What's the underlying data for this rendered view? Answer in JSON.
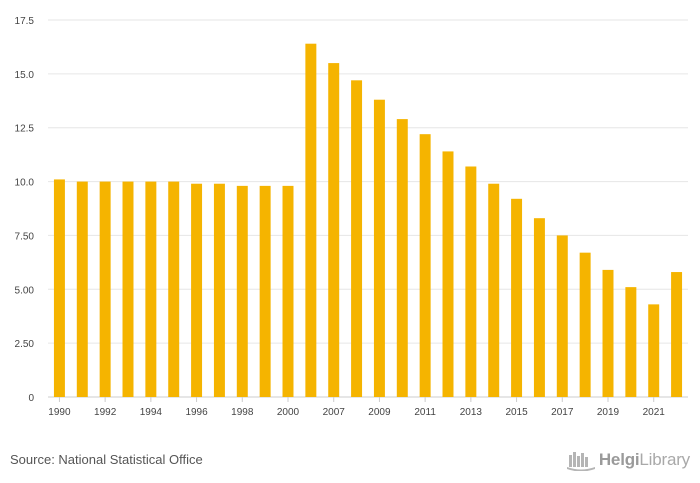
{
  "chart_data": {
    "type": "bar",
    "categories": [
      "1990",
      "1991",
      "1992",
      "1993",
      "1994",
      "1995",
      "1996",
      "1997",
      "1998",
      "1999",
      "2000",
      "2006",
      "2007",
      "2008",
      "2009",
      "2010",
      "2011",
      "2012",
      "2013",
      "2014",
      "2015",
      "2016",
      "2017",
      "2018",
      "2019",
      "2020",
      "2021",
      "2022"
    ],
    "x_tick_labels": [
      "1990",
      "1992",
      "1994",
      "1996",
      "1998",
      "2000",
      "2007",
      "2009",
      "2011",
      "2013",
      "2015",
      "2017",
      "2019",
      "2021"
    ],
    "values": [
      10.1,
      10.0,
      10.0,
      10.0,
      10.0,
      10.0,
      9.9,
      9.9,
      9.8,
      9.8,
      9.8,
      16.4,
      15.5,
      14.7,
      13.8,
      12.9,
      12.2,
      11.4,
      10.7,
      9.9,
      9.2,
      8.3,
      7.5,
      6.7,
      5.9,
      5.1,
      4.3,
      5.8
    ],
    "y_ticks": [
      "0",
      "2.50",
      "5.00",
      "7.50",
      "10.0",
      "12.5",
      "15.0",
      "17.5"
    ],
    "ylim": [
      0,
      17.5
    ],
    "grid": true,
    "bar_color": "#f5b400"
  },
  "footer": {
    "source": "Source: National Statistical Office",
    "logo_text_bold": "Helgi",
    "logo_text_light": "Library"
  }
}
